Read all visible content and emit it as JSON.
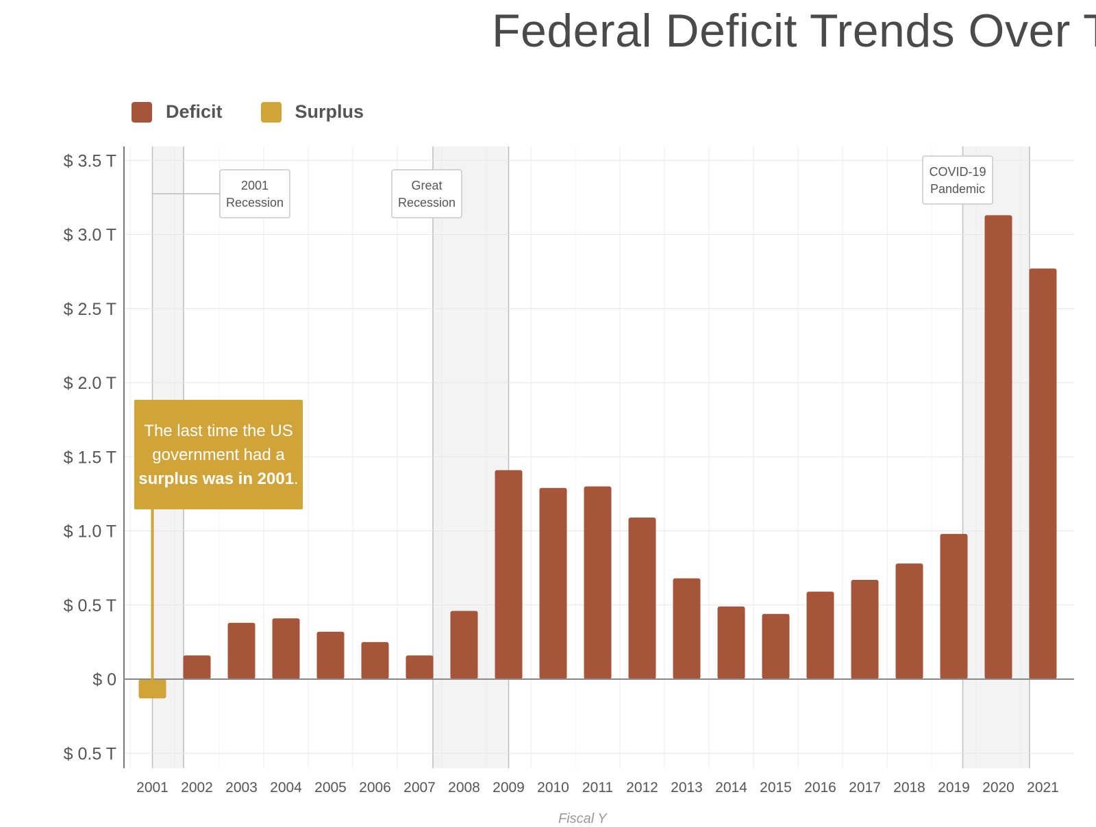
{
  "chart_data": {
    "type": "bar",
    "title": "Federal Deficit Trends Over Tir",
    "legend": [
      {
        "label": "Deficit",
        "color": "#a6553a"
      },
      {
        "label": "Surplus",
        "color": "#d1a43a"
      }
    ],
    "categories": [
      "2001",
      "2002",
      "2003",
      "2004",
      "2005",
      "2006",
      "2007",
      "2008",
      "2009",
      "2010",
      "2011",
      "2012",
      "2013",
      "2014",
      "2015",
      "2016",
      "2017",
      "2018",
      "2019",
      "2020",
      "2021"
    ],
    "values": [
      -0.13,
      0.16,
      0.38,
      0.41,
      0.32,
      0.25,
      0.16,
      0.46,
      1.41,
      1.29,
      1.3,
      1.09,
      0.68,
      0.49,
      0.44,
      0.59,
      0.67,
      0.78,
      0.98,
      3.13,
      2.77
    ],
    "ylim": [
      -0.6,
      3.6
    ],
    "yticks": [
      3.5,
      3.0,
      2.5,
      2.0,
      1.5,
      1.0,
      0.5,
      0,
      -0.5
    ],
    "ytick_labels": [
      "$ 3.5 T",
      "$ 3.0 T",
      "$ 2.5 T",
      "$ 2.0 T",
      "$ 1.5 T",
      "$ 1.0 T",
      "$ 0.5 T",
      "$ 0",
      "$ 0.5 T"
    ],
    "xlabel": "Fiscal Y",
    "ylabel": "",
    "recessions": [
      {
        "label_line1": "2001",
        "label_line2": "Recession",
        "start_year": 2001.5,
        "end_year": 2002.2
      },
      {
        "label_line1": "Great",
        "label_line2": "Recession",
        "start_year": 2007.8,
        "end_year": 2009.5
      },
      {
        "label_line1": "COVID-19",
        "label_line2": "Pandemic",
        "start_year": 2019.7,
        "end_year": 2021.2
      }
    ],
    "callout": {
      "part1": "The last time the US government had a ",
      "bold": "surplus was in 2001",
      "part2": "."
    }
  }
}
